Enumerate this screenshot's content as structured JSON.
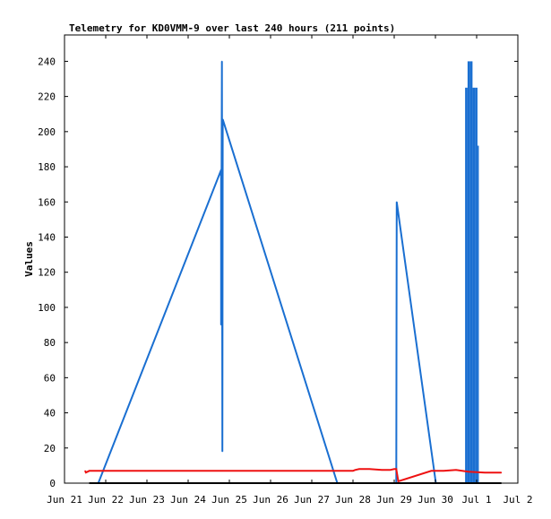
{
  "chart_data": {
    "type": "line",
    "title": "Telemetry for KD0VMM-9 over last 240 hours (211 points)",
    "xlabel": "",
    "ylabel": "Values",
    "x_ticks": [
      "Jun 21",
      "Jun 22",
      "Jun 23",
      "Jun 24",
      "Jun 25",
      "Jun 26",
      "Jun 27",
      "Jun 28",
      "Jun 29",
      "Jun 30",
      "Jul 1",
      "Jul 2"
    ],
    "xlim_days": [
      0,
      11
    ],
    "y_ticks": [
      0,
      20,
      40,
      60,
      80,
      100,
      120,
      140,
      160,
      180,
      200,
      220,
      240
    ],
    "ylim": [
      0,
      255
    ],
    "grid": false,
    "colors": {
      "blue": "#1a6fd1",
      "red": "#ee1111",
      "black": "#000000",
      "axis": "#000000"
    },
    "series": [
      {
        "color": "blue",
        "points": [
          [
            0.82,
            0
          ],
          [
            3.78,
            177
          ],
          [
            3.8,
            175
          ],
          [
            3.8,
            90
          ],
          [
            3.82,
            240
          ],
          [
            3.83,
            18
          ],
          [
            3.84,
            207
          ],
          [
            6.62,
            0
          ],
          [
            8.05,
            0
          ],
          [
            8.06,
            160
          ],
          [
            9.01,
            0
          ],
          [
            9.08,
            0
          ]
        ]
      },
      {
        "color": "blue",
        "bar_block": [
          [
            9.72,
            225
          ],
          [
            9.78,
            240
          ],
          [
            9.84,
            240
          ],
          [
            9.9,
            225
          ],
          [
            9.96,
            225
          ],
          [
            10.02,
            192
          ]
        ]
      },
      {
        "color": "red",
        "points": [
          [
            0.5,
            7
          ],
          [
            0.52,
            6
          ],
          [
            0.6,
            7
          ],
          [
            3.8,
            7
          ],
          [
            3.84,
            7
          ],
          [
            7.0,
            7
          ],
          [
            7.05,
            7.5
          ],
          [
            7.15,
            8
          ],
          [
            7.4,
            8
          ],
          [
            7.7,
            7.5
          ],
          [
            7.9,
            7.5
          ],
          [
            8.0,
            8
          ],
          [
            8.05,
            8
          ],
          [
            8.1,
            1
          ],
          [
            8.9,
            7
          ],
          [
            9.2,
            7
          ],
          [
            9.5,
            7.5
          ],
          [
            9.8,
            6.5
          ],
          [
            10.2,
            6
          ],
          [
            10.6,
            6
          ]
        ]
      },
      {
        "color": "black",
        "points": [
          [
            0.6,
            0
          ],
          [
            10.6,
            0
          ]
        ]
      }
    ]
  }
}
